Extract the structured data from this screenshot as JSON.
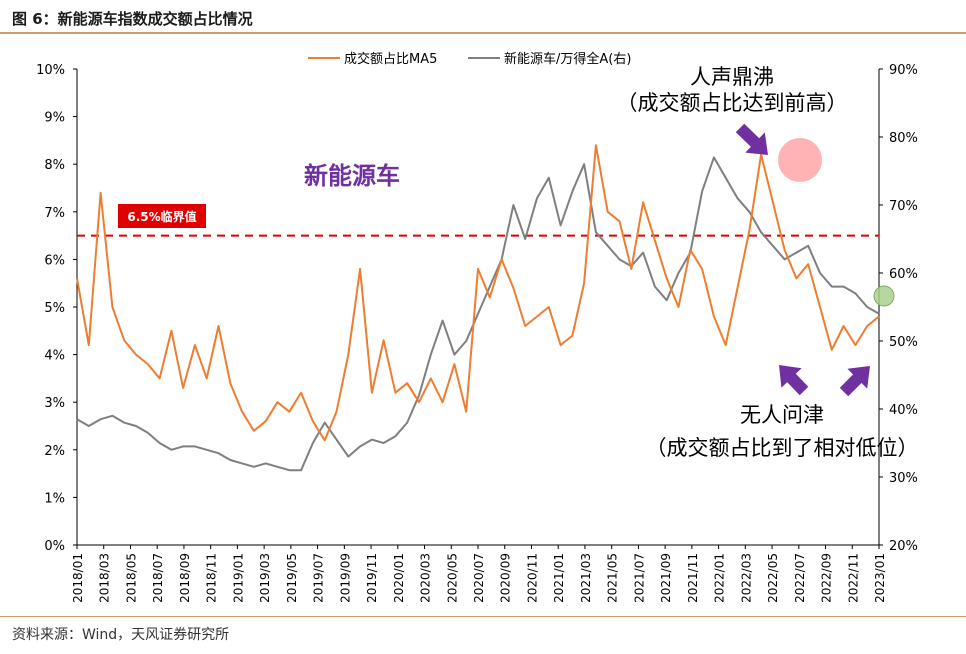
{
  "figure_title": "图 6：新能源车指数成交额占比情况",
  "source": "资料来源：Wind，天风证券研究所",
  "colors": {
    "share": "#ED7D31",
    "index": "#7F7F7F",
    "threshold": "#E00000",
    "arrow": "#7030A0",
    "text_purple": "#7030A0",
    "rule": "#C9A06A"
  },
  "annotations": {
    "sector": "新能源车",
    "threshold_label": "6.5%临界值",
    "peak_line1": "人声鼎沸",
    "peak_line2": "（成交额占比达到前高）",
    "trough_line1": "无人问津",
    "trough_line2": "（成交额占比到了相对低位）"
  },
  "chart_data": {
    "type": "line",
    "x_labels": [
      "2018/01",
      "2018/03",
      "2018/05",
      "2018/07",
      "2018/09",
      "2018/11",
      "2019/01",
      "2019/03",
      "2019/05",
      "2019/07",
      "2019/09",
      "2019/11",
      "2020/01",
      "2020/03",
      "2020/05",
      "2020/07",
      "2020/09",
      "2020/11",
      "2021/01",
      "2021/03",
      "2021/05",
      "2021/07",
      "2021/09",
      "2021/11",
      "2022/01",
      "2022/03",
      "2022/05",
      "2022/07",
      "2022/09",
      "2022/11",
      "2023/01"
    ],
    "y_left": {
      "min": 0,
      "max": 10,
      "step": 1,
      "unit": "%"
    },
    "y_right": {
      "min": 20,
      "max": 90,
      "step": 10,
      "unit": "%"
    },
    "threshold": 6.5,
    "legend_position": "top-center",
    "series": [
      {
        "name": "成交额占比MA5",
        "axis": "left",
        "values": [
          5.6,
          4.2,
          7.4,
          5.0,
          4.3,
          4.0,
          3.8,
          3.5,
          4.5,
          3.3,
          4.2,
          3.5,
          4.6,
          3.4,
          2.8,
          2.4,
          2.6,
          3.0,
          2.8,
          3.2,
          2.6,
          2.2,
          2.8,
          4.0,
          5.8,
          3.2,
          4.3,
          3.2,
          3.4,
          3.0,
          3.5,
          3.0,
          3.8,
          2.8,
          5.8,
          5.2,
          6.0,
          5.4,
          4.6,
          4.8,
          5.0,
          4.2,
          4.4,
          5.5,
          8.4,
          7.0,
          6.8,
          5.8,
          7.2,
          6.4,
          5.6,
          5.0,
          6.2,
          5.8,
          4.8,
          4.2,
          5.4,
          6.6,
          8.2,
          7.2,
          6.2,
          5.6,
          5.9,
          5.0,
          4.1,
          4.6,
          4.2,
          4.6,
          4.8
        ]
      },
      {
        "name": "新能源车/万得全A(右)",
        "axis": "right",
        "values": [
          38.5,
          37.5,
          38.5,
          39.0,
          38.0,
          37.5,
          36.5,
          35.0,
          34.0,
          34.5,
          34.5,
          34.0,
          33.5,
          32.5,
          32.0,
          31.5,
          32.0,
          31.5,
          31.0,
          31.0,
          35.0,
          38.0,
          35.5,
          33.0,
          34.5,
          35.5,
          35.0,
          36.0,
          38.0,
          42.0,
          48.0,
          53.0,
          48.0,
          50.0,
          54.0,
          58.0,
          62.0,
          70.0,
          65.0,
          71.0,
          74.0,
          67.0,
          72.0,
          76.0,
          66.0,
          64.0,
          62.0,
          61.0,
          63.0,
          58.0,
          56.0,
          60.0,
          63.0,
          72.0,
          77.0,
          74.0,
          71.0,
          69.0,
          66.0,
          64.0,
          62.0,
          63.0,
          64.0,
          60.0,
          58.0,
          58.0,
          57.0,
          55.0,
          54.0
        ]
      }
    ]
  }
}
